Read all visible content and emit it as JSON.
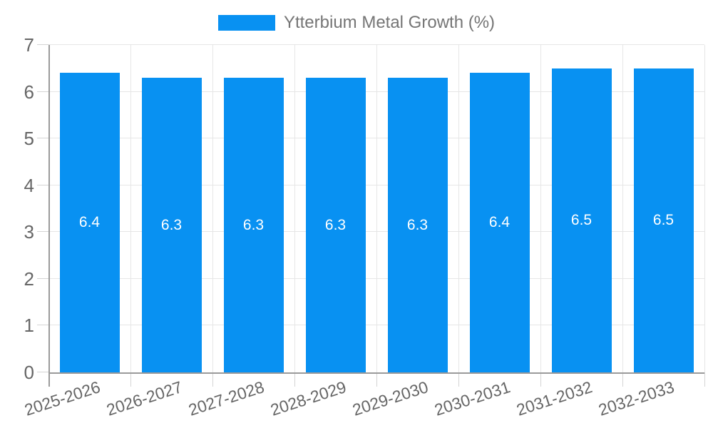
{
  "chart_data": {
    "type": "bar",
    "title": "Ytterbium Metal Growth (%)",
    "legend": {
      "position": "top",
      "label": "Ytterbium Metal Growth (%)"
    },
    "categories": [
      "2025-2026",
      "2026-2027",
      "2027-2028",
      "2028-2029",
      "2029-2030",
      "2030-2031",
      "2031-2032",
      "2032-2033"
    ],
    "series": [
      {
        "name": "Ytterbium Metal Growth (%)",
        "values": [
          6.4,
          6.3,
          6.3,
          6.3,
          6.3,
          6.4,
          6.5,
          6.5
        ],
        "value_labels": [
          "6.4",
          "6.3",
          "6.3",
          "6.3",
          "6.3",
          "6.4",
          "6.5",
          "6.5"
        ]
      }
    ],
    "xlabel": "",
    "ylabel": "",
    "ylim": [
      0,
      7
    ],
    "yticks": [
      0,
      1,
      2,
      3,
      4,
      5,
      6,
      7
    ],
    "grid": true,
    "value_label_position": "inside-center",
    "x_tick_label_rotation_deg": -18,
    "colors": {
      "bar": "#0891f2",
      "grid": "#e6e6e6",
      "tick": "#d4d4d4",
      "axis": "#9a9a9a",
      "tick_label": "#666666",
      "legend_text": "#757575",
      "value_label": "#ffffff",
      "background": "#ffffff"
    }
  }
}
